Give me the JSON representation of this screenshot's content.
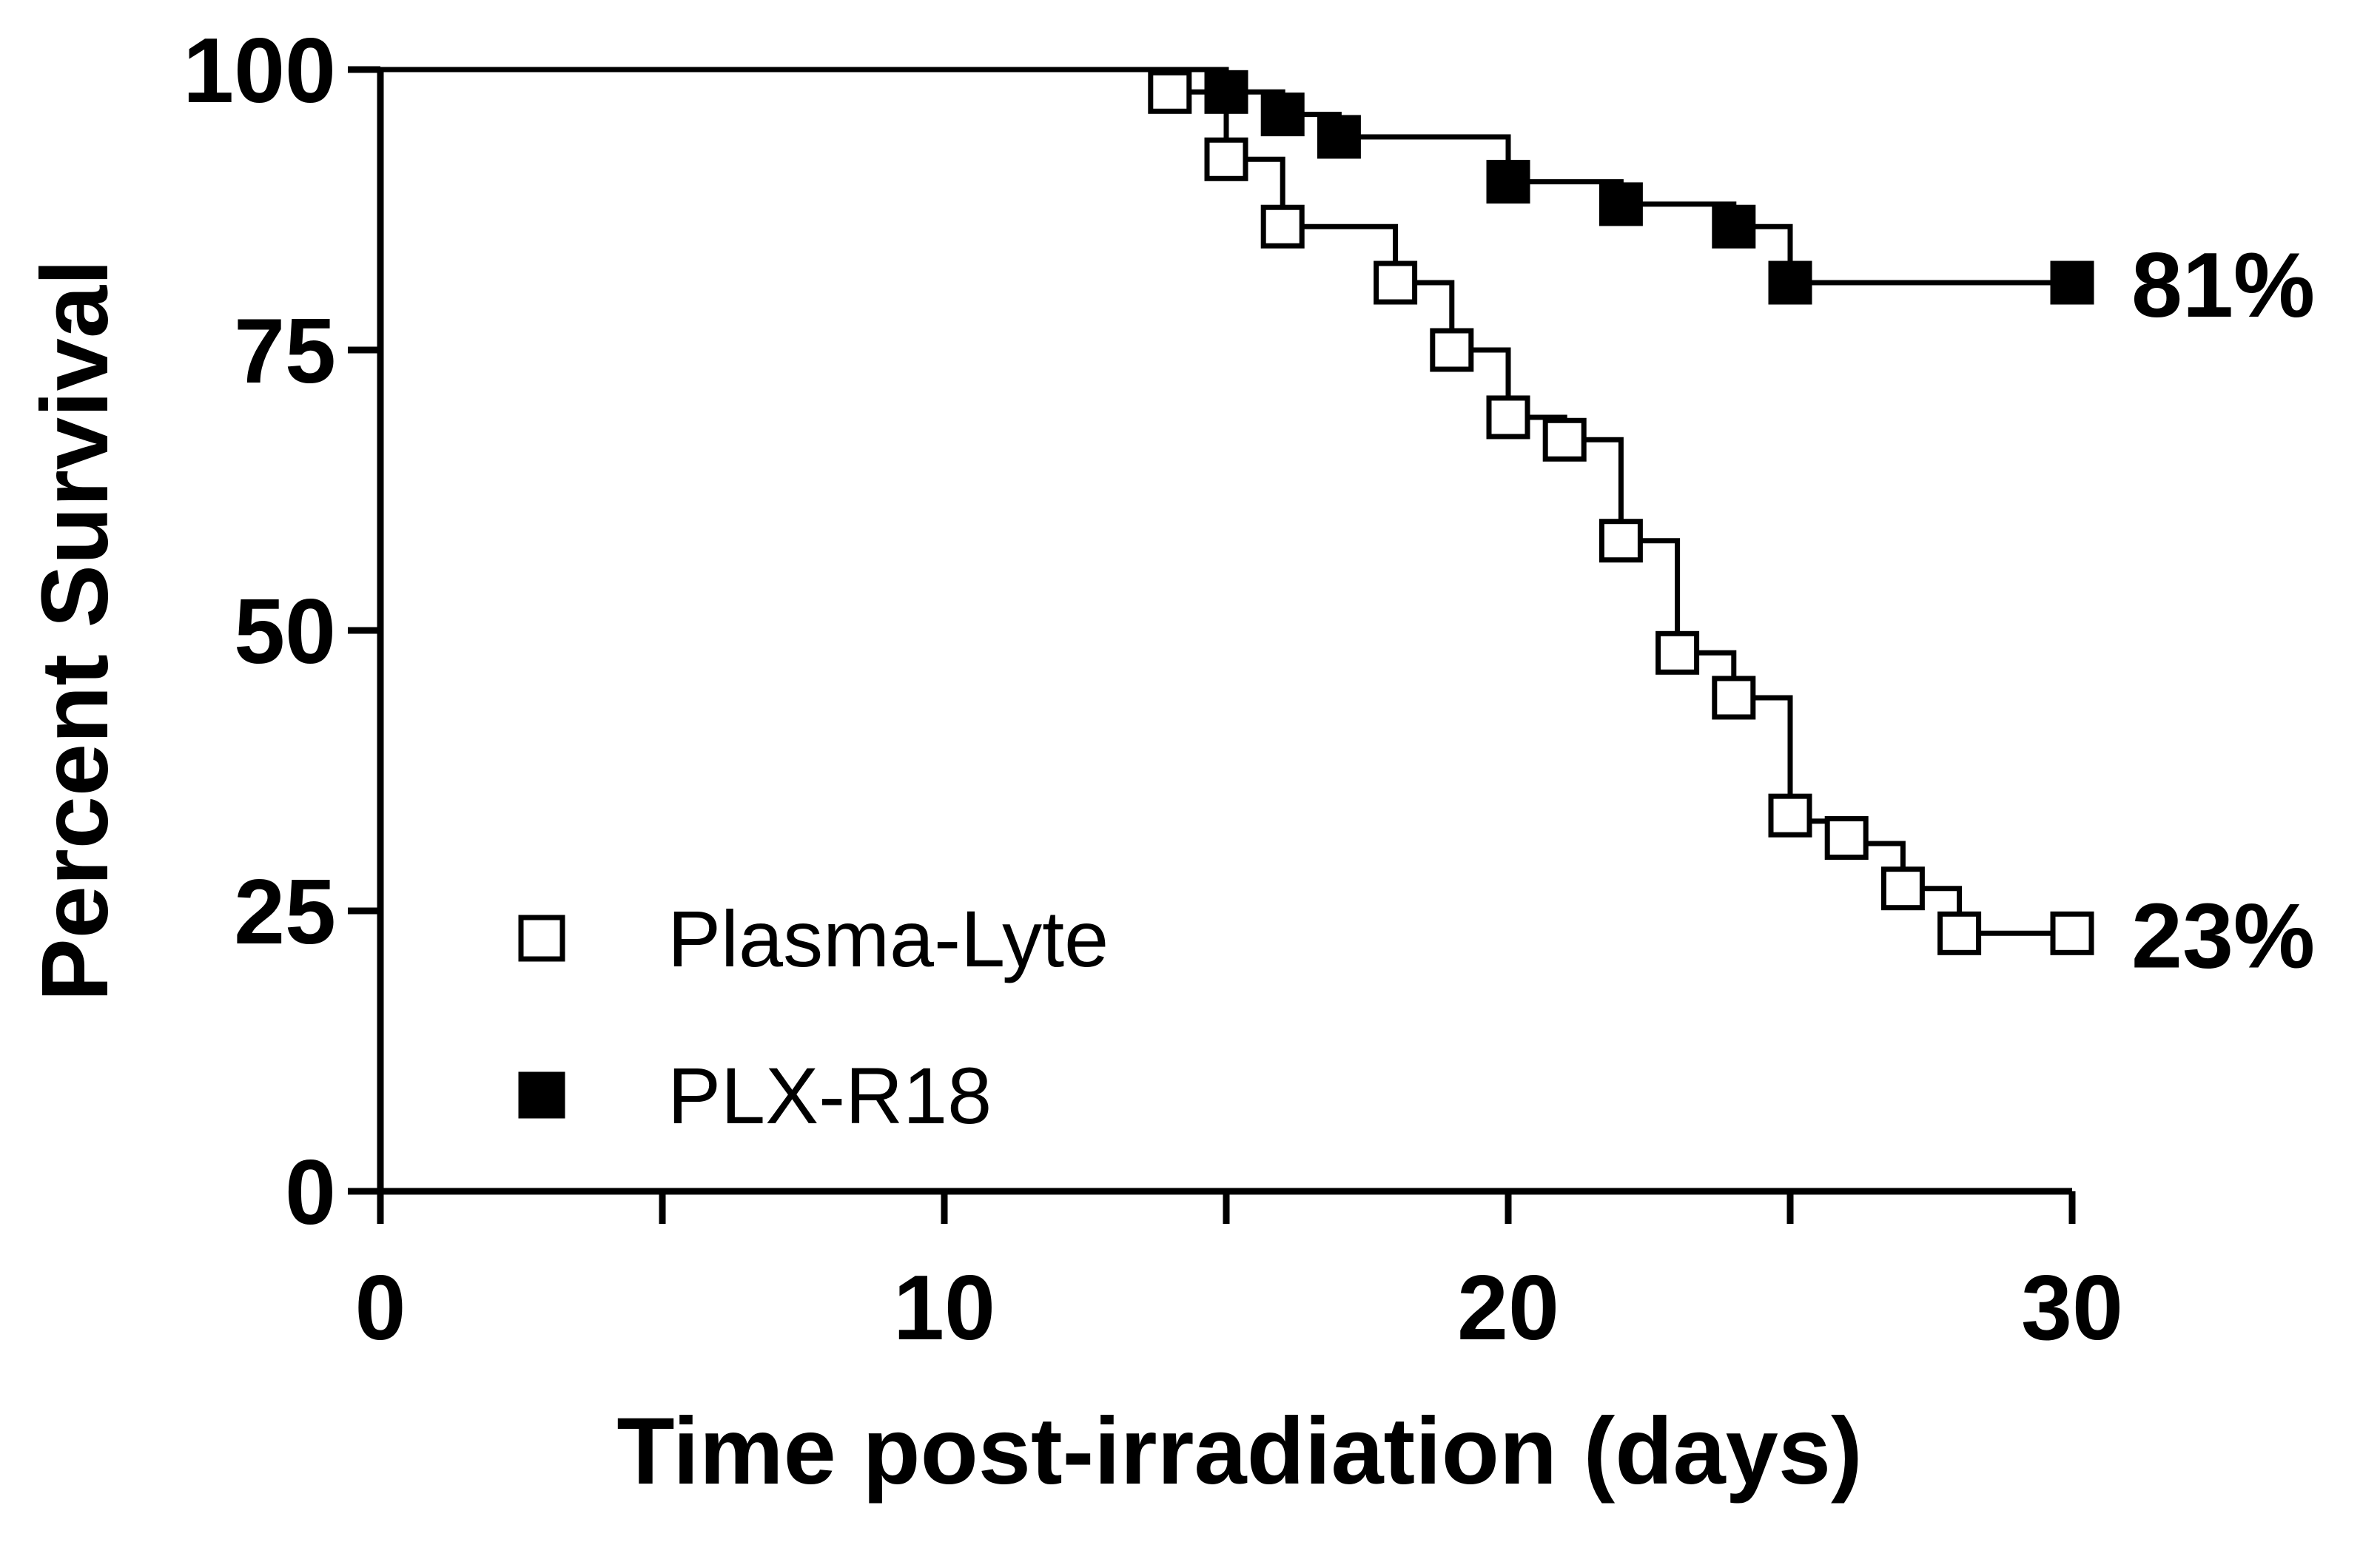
{
  "chart_data": {
    "type": "line",
    "subtype": "kaplan-meier-survival",
    "title": "",
    "xlabel": "Time post-irradiation (days)",
    "ylabel": "Percent Survival",
    "xlim": [
      0,
      30
    ],
    "ylim": [
      0,
      100
    ],
    "xticks": [
      0,
      10,
      20,
      30
    ],
    "xminor_ticks": [
      5,
      15,
      25
    ],
    "yticks": [
      0,
      25,
      50,
      75,
      100
    ],
    "grid": false,
    "legend_position": "bottom-left",
    "series": [
      {
        "name": "Plasma-Lyte",
        "marker": "open-square",
        "steps": [
          [
            0,
            100
          ],
          [
            14,
            100
          ],
          [
            14,
            98
          ],
          [
            15,
            98
          ],
          [
            15,
            92
          ],
          [
            16,
            92
          ],
          [
            16,
            86
          ],
          [
            18,
            86
          ],
          [
            18,
            81
          ],
          [
            19,
            81
          ],
          [
            19,
            75
          ],
          [
            20,
            75
          ],
          [
            20,
            69
          ],
          [
            21,
            69
          ],
          [
            21,
            67
          ],
          [
            22,
            67
          ],
          [
            22,
            58
          ],
          [
            23,
            58
          ],
          [
            23,
            48
          ],
          [
            24,
            48
          ],
          [
            24,
            44
          ],
          [
            25,
            44
          ],
          [
            25,
            33
          ],
          [
            26,
            33
          ],
          [
            26,
            31
          ],
          [
            27,
            31
          ],
          [
            27,
            27
          ],
          [
            28,
            27
          ],
          [
            28,
            23
          ],
          [
            30,
            23
          ]
        ],
        "points": [
          [
            14,
            98
          ],
          [
            15,
            92
          ],
          [
            16,
            86
          ],
          [
            18,
            81
          ],
          [
            19,
            75
          ],
          [
            20,
            69
          ],
          [
            21,
            67
          ],
          [
            22,
            58
          ],
          [
            23,
            48
          ],
          [
            24,
            44
          ],
          [
            25,
            33.5
          ],
          [
            26,
            31.5
          ],
          [
            27,
            27
          ],
          [
            28,
            23
          ],
          [
            30,
            23
          ]
        ],
        "end_label": "23%"
      },
      {
        "name": "PLX-R18",
        "marker": "filled-square",
        "steps": [
          [
            0,
            100
          ],
          [
            15,
            100
          ],
          [
            15,
            98
          ],
          [
            16,
            98
          ],
          [
            16,
            96
          ],
          [
            17,
            96
          ],
          [
            17,
            94
          ],
          [
            20,
            94
          ],
          [
            20,
            90
          ],
          [
            22,
            90
          ],
          [
            22,
            88
          ],
          [
            24,
            88
          ],
          [
            24,
            86
          ],
          [
            25,
            86
          ],
          [
            25,
            81
          ],
          [
            30,
            81
          ]
        ],
        "points": [
          [
            15,
            98
          ],
          [
            16,
            96
          ],
          [
            17,
            94
          ],
          [
            20,
            90
          ],
          [
            22,
            88
          ],
          [
            24,
            86
          ],
          [
            25,
            81
          ],
          [
            30,
            81
          ]
        ],
        "end_label": "81%"
      }
    ]
  }
}
